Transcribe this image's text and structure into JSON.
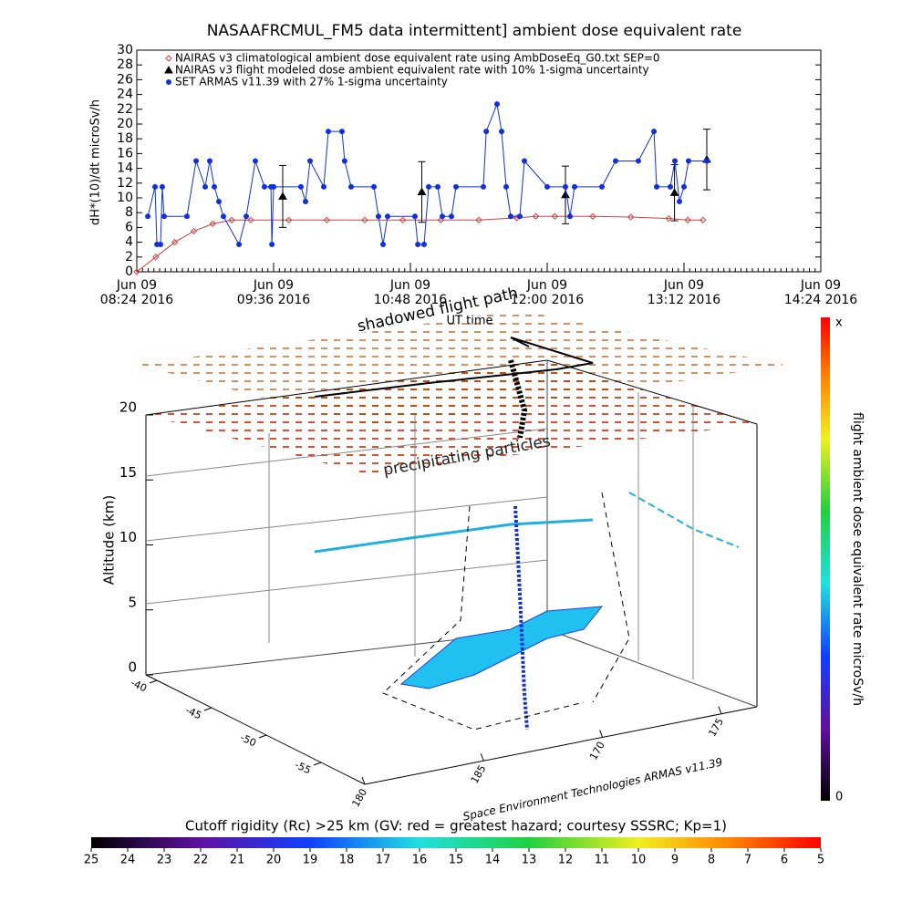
{
  "chart_data": [
    {
      "type": "line",
      "title": "NASAAFRCMUL_FM5 data intermittent] ambient dose equivalent rate",
      "ylabel": "dH*(10)/dt microSv/h",
      "xlim": [
        0,
        360
      ],
      "xticks": [
        {
          "value": 0,
          "label": "Jun 09\n08:24 2016"
        },
        {
          "value": 72,
          "label": "Jun 09\n09:36 2016"
        },
        {
          "value": 144,
          "label": "Jun 09\n10:48 2016"
        },
        {
          "value": 216,
          "label": "Jun 09\n12:00 2016"
        },
        {
          "value": 288,
          "label": "Jun 09\n13:12 2016"
        },
        {
          "value": 360,
          "label": "Jun 09\n14:24 2016"
        }
      ],
      "ylim": [
        0,
        30
      ],
      "yticks": [
        0,
        2,
        4,
        6,
        8,
        10,
        12,
        14,
        16,
        18,
        20,
        22,
        24,
        26,
        28,
        30
      ],
      "series": [
        {
          "name": "NAIRAS v3 climatological ambient dose equivalent rate using AmbDoseEq_G0.txt SEP=0",
          "color": "#d04040",
          "marker": "diamond",
          "x": [
            0,
            10,
            20,
            30,
            40,
            50,
            60,
            80,
            100,
            120,
            140,
            160,
            180,
            200,
            210,
            220,
            240,
            260,
            280,
            290,
            298
          ],
          "values": [
            0,
            2,
            4,
            5.5,
            6.5,
            7,
            7,
            7,
            7,
            7,
            7,
            7,
            7,
            7.3,
            7.5,
            7.5,
            7.5,
            7.4,
            7.2,
            7,
            7
          ]
        },
        {
          "name": "NAIRAS v3 flight modeled dose ambient equivalent rate with 10% 1-sigma uncertainty",
          "color": "#000000",
          "marker": "triangle",
          "x": [
            76.8,
            150,
            225.6,
            283,
            300
          ],
          "values": [
            10.2,
            10.8,
            10.4,
            10.7,
            15.2
          ],
          "errors": [
            4.2,
            4.1,
            3.9,
            3.8,
            4.1
          ]
        },
        {
          "name": "SET ARMAS v11.39 with 27% 1-sigma uncertainty",
          "color": "#1030e0",
          "marker": "circle",
          "x": [
            5.8,
            9.6,
            10.6,
            12.5,
            13.4,
            14.4,
            26.4,
            31.2,
            36,
            38.4,
            40.8,
            43.2,
            45.6,
            53.8,
            57.6,
            62.4,
            67.2,
            70.6,
            71.1,
            72,
            86.4,
            88.8,
            91.2,
            98.4,
            100.8,
            108,
            109.4,
            112.8,
            124.8,
            127.2,
            129.6,
            132,
            146.4,
            147.9,
            151.2,
            153.6,
            158.4,
            160.8,
            165.6,
            168,
            182.4,
            183.9,
            189.6,
            192,
            194.4,
            196.8,
            201.6,
            204,
            216,
            225.6,
            228,
            230.4,
            244.8,
            252,
            264,
            272.2,
            273.6,
            280.8,
            283.2,
            285.6,
            288,
            290.4,
            300
          ],
          "values": [
            7.5,
            11.5,
            3.7,
            3.7,
            11.5,
            7.5,
            7.5,
            15,
            11.5,
            15,
            11.5,
            9.5,
            7.5,
            3.7,
            7.5,
            15,
            11.5,
            11.5,
            3.7,
            11.5,
            11.5,
            9.5,
            15,
            11.5,
            19,
            19,
            15,
            11.5,
            11.5,
            7.5,
            3.7,
            7.5,
            7.5,
            3.7,
            3.7,
            11.5,
            11.5,
            7.5,
            7.5,
            11.5,
            11.5,
            19,
            22.7,
            19,
            11.5,
            7.5,
            7.5,
            15,
            11.5,
            11.5,
            7.5,
            11.5,
            11.5,
            15,
            15,
            19,
            11.5,
            11.5,
            15,
            9.5,
            11.5,
            15,
            15
          ]
        }
      ]
    },
    {
      "type": "3d",
      "zlabel": "Altitude (km)",
      "zlim": [
        0,
        20
      ],
      "zticks": [
        0,
        5,
        10,
        15,
        20
      ],
      "lat_ticks": [
        -40,
        -45,
        -50,
        -55
      ],
      "lon_ticks": [
        180,
        185,
        170,
        175
      ],
      "annotations": [
        "shadowed flight path",
        "UT time",
        "precipitating particles",
        "Space Environment Technologies ARMAS v11.39"
      ],
      "colorbar_title": "flight ambient dose equivalent rate microSv/h",
      "colorbar_labels": [
        "x",
        "0"
      ]
    },
    {
      "type": "colorbar",
      "title": "Cutoff rigidity (Rc) >25 km (GV: red = greatest hazard; courtesy SSSRC; Kp=1)",
      "xlim": [
        25,
        5
      ],
      "xticks": [
        25,
        24,
        23,
        22,
        21,
        20,
        19,
        18,
        17,
        16,
        15,
        14,
        13,
        12,
        11,
        10,
        9,
        8,
        7,
        6,
        5
      ]
    }
  ]
}
